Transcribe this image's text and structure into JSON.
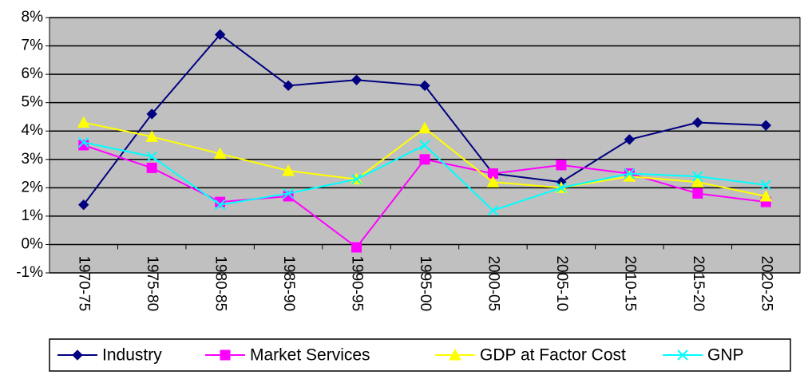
{
  "chart_data": {
    "type": "line",
    "categories": [
      "1970-75",
      "1975-80",
      "1980-85",
      "1985-90",
      "1990-95",
      "1995-00",
      "2000-05",
      "2005-10",
      "2010-15",
      "2015-20",
      "2020-25"
    ],
    "series": [
      {
        "name": "Industry",
        "color": "#000080",
        "marker": "diamond",
        "values": [
          1.4,
          4.6,
          7.4,
          5.6,
          5.8,
          5.6,
          2.5,
          2.2,
          3.7,
          4.3,
          4.2
        ]
      },
      {
        "name": "Market Services",
        "color": "#ff00ff",
        "marker": "square",
        "values": [
          3.5,
          2.7,
          1.5,
          1.7,
          -0.1,
          3.0,
          2.5,
          2.8,
          2.5,
          1.8,
          1.5
        ]
      },
      {
        "name": "GDP at Factor Cost",
        "color": "#ffff00",
        "marker": "triangle",
        "values": [
          4.3,
          3.8,
          3.2,
          2.6,
          2.3,
          4.1,
          2.2,
          2.0,
          2.4,
          2.2,
          1.7
        ]
      },
      {
        "name": "GNP",
        "color": "#00ffff",
        "marker": "x",
        "values": [
          3.6,
          3.1,
          1.4,
          1.8,
          2.3,
          3.5,
          1.2,
          2.0,
          2.5,
          2.4,
          2.1
        ]
      }
    ],
    "ylim": [
      -1,
      8
    ],
    "yticks": [
      {
        "value": -1,
        "label": "-1%"
      },
      {
        "value": 0,
        "label": "0%"
      },
      {
        "value": 1,
        "label": "1%"
      },
      {
        "value": 2,
        "label": "2%"
      },
      {
        "value": 3,
        "label": "3%"
      },
      {
        "value": 4,
        "label": "4%"
      },
      {
        "value": 5,
        "label": "5%"
      },
      {
        "value": 6,
        "label": "6%"
      },
      {
        "value": 7,
        "label": "7%"
      },
      {
        "value": 8,
        "label": "8%"
      }
    ],
    "grid": true,
    "legend": "bottom"
  }
}
